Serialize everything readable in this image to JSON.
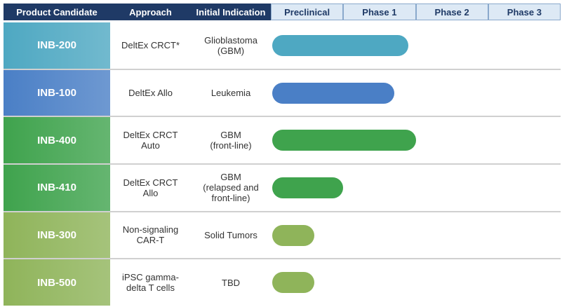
{
  "chart_data": {
    "type": "pipeline",
    "headers": [
      "Product Candidate",
      "Approach",
      "Initial Indication"
    ],
    "phases": [
      "Preclinical",
      "Phase 1",
      "Phase 2",
      "Phase 3"
    ],
    "rows": [
      {
        "product": "INB-200",
        "approach": [
          "DeltEx CRCT*"
        ],
        "indication": [
          "Glioblastoma",
          "(GBM)"
        ],
        "color": "#4ea8c2",
        "progress": 1.9
      },
      {
        "product": "INB-100",
        "approach": [
          "DeltEx Allo"
        ],
        "indication": [
          "Leukemia"
        ],
        "color": "#4a7fc6",
        "progress": 1.7
      },
      {
        "product": "INB-400",
        "approach": [
          "DeltEx CRCT",
          "Auto"
        ],
        "indication": [
          "GBM",
          "(front-line)"
        ],
        "color": "#3fa34d",
        "progress": 2.0
      },
      {
        "product": "INB-410",
        "approach": [
          "DeltEx CRCT",
          "Allo"
        ],
        "indication": [
          "GBM",
          "(relapsed and",
          "front-line)"
        ],
        "color": "#3fa34d",
        "progress": 1.0
      },
      {
        "product": "INB-300",
        "approach": [
          "Non-signaling",
          "CAR-T"
        ],
        "indication": [
          "Solid Tumors"
        ],
        "color": "#8fb45a",
        "progress": 0.6
      },
      {
        "product": "INB-500",
        "approach": [
          "iPSC gamma-",
          "delta T cells"
        ],
        "indication": [
          "TBD"
        ],
        "color": "#8fb45a",
        "progress": 0.6
      }
    ]
  }
}
